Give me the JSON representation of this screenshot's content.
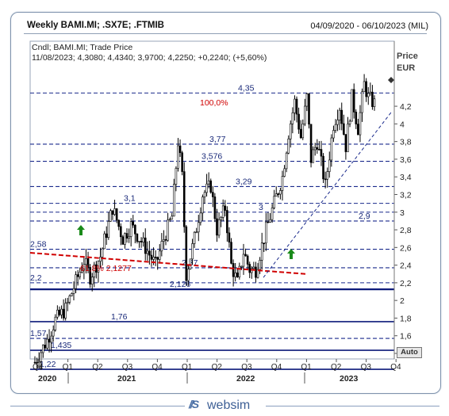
{
  "header": {
    "title": "Weekly BAMI.MI; .SX7E; .FTMIB",
    "date_range": "04/09/2020 - 06/10/2023 (MIL)"
  },
  "legend": {
    "line1": "Cndl; BAMI.MI; Trade Price",
    "line2": "11/08/2023; 4,3080; 4,4340; 3,9700; 4,2250; +0,2240; (+5,60%)"
  },
  "axis": {
    "price_label": "Price",
    "currency_label": "EUR",
    "auto_label": "Auto"
  },
  "footer": {
    "logo_mark": "//S",
    "brand": "websim"
  },
  "colors": {
    "candle": "#000000",
    "hline_dashed": "#1a2a8c",
    "hline_solid": "#0d1a7a",
    "trend_red": "#d00000",
    "trend_blue": "#1a2a8c",
    "arrow_green": "#1a8a1a",
    "percent_label": "#d00000"
  },
  "chart_data": {
    "type": "candlestick",
    "instrument": "BAMI.MI",
    "series_label": "Trade Price",
    "last_bar": {
      "date": "11/08/2023",
      "open": 4.308,
      "high": 4.434,
      "low": 3.97,
      "close": 4.225,
      "change": 0.224,
      "change_pct": "+5,60%"
    },
    "ylim": [
      1.1,
      4.6
    ],
    "y_ticks": [
      "4,2",
      "4",
      "3,8",
      "3,6",
      "3,4",
      "3,2",
      "3",
      "2,8",
      "2,6",
      "2,4",
      "2,2",
      "2",
      "1,8",
      "1,6",
      "1,4"
    ],
    "x_quarters": [
      "Q4",
      "Q1",
      "Q2",
      "Q3",
      "Q4",
      "Q1",
      "Q2",
      "Q3",
      "Q4",
      "Q1",
      "Q2",
      "Q3",
      "Q4"
    ],
    "x_years": [
      "2020",
      "2021",
      "2022",
      "2023"
    ],
    "levels": [
      {
        "label": "4,35",
        "value": 4.35,
        "style": "dashed"
      },
      {
        "label": "3,77",
        "value": 3.77,
        "style": "dashed"
      },
      {
        "label": "3,576",
        "value": 3.576,
        "style": "dashed"
      },
      {
        "label": "3,29",
        "value": 3.29,
        "style": "dashed"
      },
      {
        "label": "3,1",
        "value": 3.1,
        "style": "dashed"
      },
      {
        "label": "3",
        "value": 3.0,
        "style": "dashed"
      },
      {
        "label": "2,9",
        "value": 2.9,
        "style": "dashed"
      },
      {
        "label": "2,58",
        "value": 2.58,
        "style": "dashed"
      },
      {
        "label": "2,37",
        "value": 2.37,
        "style": "dashed"
      },
      {
        "label": "2,2",
        "value": 2.2,
        "style": "dashed"
      },
      {
        "label": "2,126",
        "value": 2.126,
        "style": "solid"
      },
      {
        "label": "1,76",
        "value": 1.76,
        "style": "solid"
      },
      {
        "label": "1,57",
        "value": 1.57,
        "style": "dashed"
      },
      {
        "label": "1,435",
        "value": 1.435,
        "style": "solid"
      },
      {
        "label": "1,22",
        "value": 1.22,
        "style": "solid"
      }
    ],
    "annotations": [
      {
        "text": "100,0%"
      },
      {
        "text": "61,8% 2,1277"
      }
    ]
  }
}
